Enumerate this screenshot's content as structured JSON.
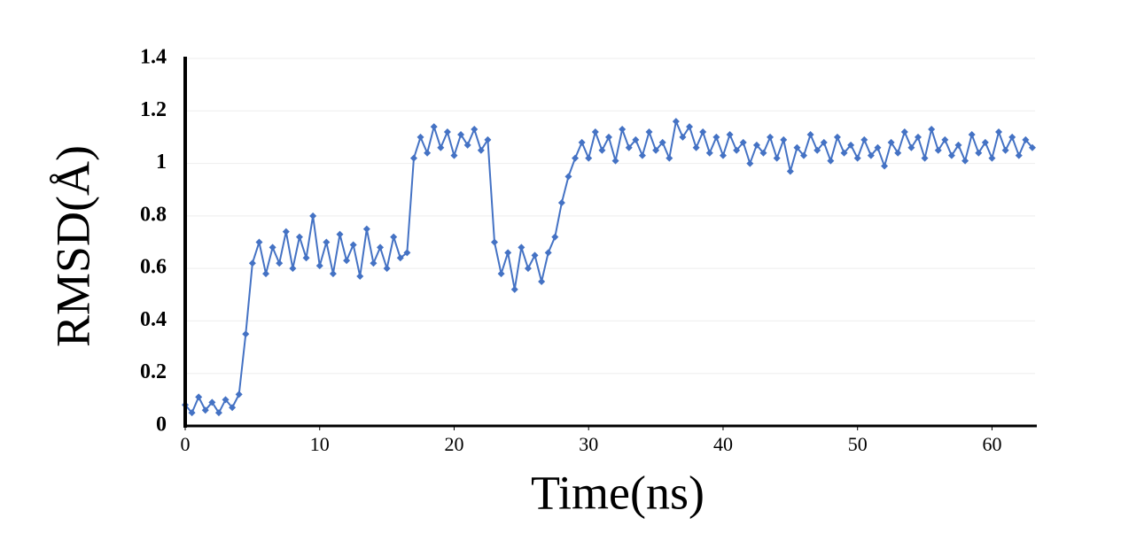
{
  "chart_data": {
    "type": "line",
    "x_label": "Time(ns)",
    "y_label": "RMSD(Å)",
    "x": [
      0,
      0.5,
      1,
      1.5,
      2,
      2.5,
      3,
      3.5,
      4,
      4.5,
      5,
      5.5,
      6,
      6.5,
      7,
      7.5,
      8,
      8.5,
      9,
      9.5,
      10,
      10.5,
      11,
      11.5,
      12,
      12.5,
      13,
      13.5,
      14,
      14.5,
      15,
      15.5,
      16,
      16.5,
      17,
      17.5,
      18,
      18.5,
      19,
      19.5,
      20,
      20.5,
      21,
      21.5,
      22,
      22.5,
      23,
      23.5,
      24,
      24.5,
      25,
      25.5,
      26,
      26.5,
      27,
      27.5,
      28,
      28.5,
      29,
      29.5,
      30,
      30.5,
      31,
      31.5,
      32,
      32.5,
      33,
      33.5,
      34,
      34.5,
      35,
      35.5,
      36,
      36.5,
      37,
      37.5,
      38,
      38.5,
      39,
      39.5,
      40,
      40.5,
      41,
      41.5,
      42,
      42.5,
      43,
      43.5,
      44,
      44.5,
      45,
      45.5,
      46,
      46.5,
      47,
      47.5,
      48,
      48.5,
      49,
      49.5,
      50,
      50.5,
      51,
      51.5,
      52,
      52.5,
      53,
      53.5,
      54,
      54.5,
      55,
      55.5,
      56,
      56.5,
      57,
      57.5,
      58,
      58.5,
      59,
      59.5,
      60,
      60.5,
      61,
      61.5,
      62,
      62.5,
      63
    ],
    "values": [
      0.08,
      0.05,
      0.11,
      0.06,
      0.09,
      0.05,
      0.1,
      0.07,
      0.12,
      0.35,
      0.62,
      0.7,
      0.58,
      0.68,
      0.62,
      0.74,
      0.6,
      0.72,
      0.64,
      0.8,
      0.61,
      0.7,
      0.58,
      0.73,
      0.63,
      0.69,
      0.57,
      0.75,
      0.62,
      0.68,
      0.6,
      0.72,
      0.64,
      0.66,
      1.02,
      1.1,
      1.04,
      1.14,
      1.06,
      1.12,
      1.03,
      1.11,
      1.07,
      1.13,
      1.05,
      1.09,
      0.7,
      0.58,
      0.66,
      0.52,
      0.68,
      0.6,
      0.65,
      0.55,
      0.66,
      0.72,
      0.85,
      0.95,
      1.02,
      1.08,
      1.02,
      1.12,
      1.05,
      1.1,
      1.01,
      1.13,
      1.06,
      1.09,
      1.03,
      1.12,
      1.05,
      1.08,
      1.02,
      1.16,
      1.1,
      1.14,
      1.06,
      1.12,
      1.04,
      1.1,
      1.03,
      1.11,
      1.05,
      1.08,
      1.0,
      1.07,
      1.04,
      1.1,
      1.02,
      1.09,
      0.97,
      1.06,
      1.03,
      1.11,
      1.05,
      1.08,
      1.01,
      1.1,
      1.04,
      1.07,
      1.02,
      1.09,
      1.03,
      1.06,
      0.99,
      1.08,
      1.04,
      1.12,
      1.06,
      1.1,
      1.02,
      1.13,
      1.05,
      1.09,
      1.03,
      1.07,
      1.01,
      1.11,
      1.04,
      1.08,
      1.02,
      1.12,
      1.05,
      1.1,
      1.03,
      1.09,
      1.06
    ],
    "color": "#4472c4",
    "xlim": [
      0,
      63.2
    ],
    "xticks": [
      0,
      10,
      20,
      30,
      40,
      50,
      60
    ],
    "ylim": [
      0,
      1.4
    ],
    "yticks": [
      0,
      0.2,
      0.4,
      0.6,
      0.8,
      1,
      1.2,
      1.4
    ],
    "grid": true
  }
}
